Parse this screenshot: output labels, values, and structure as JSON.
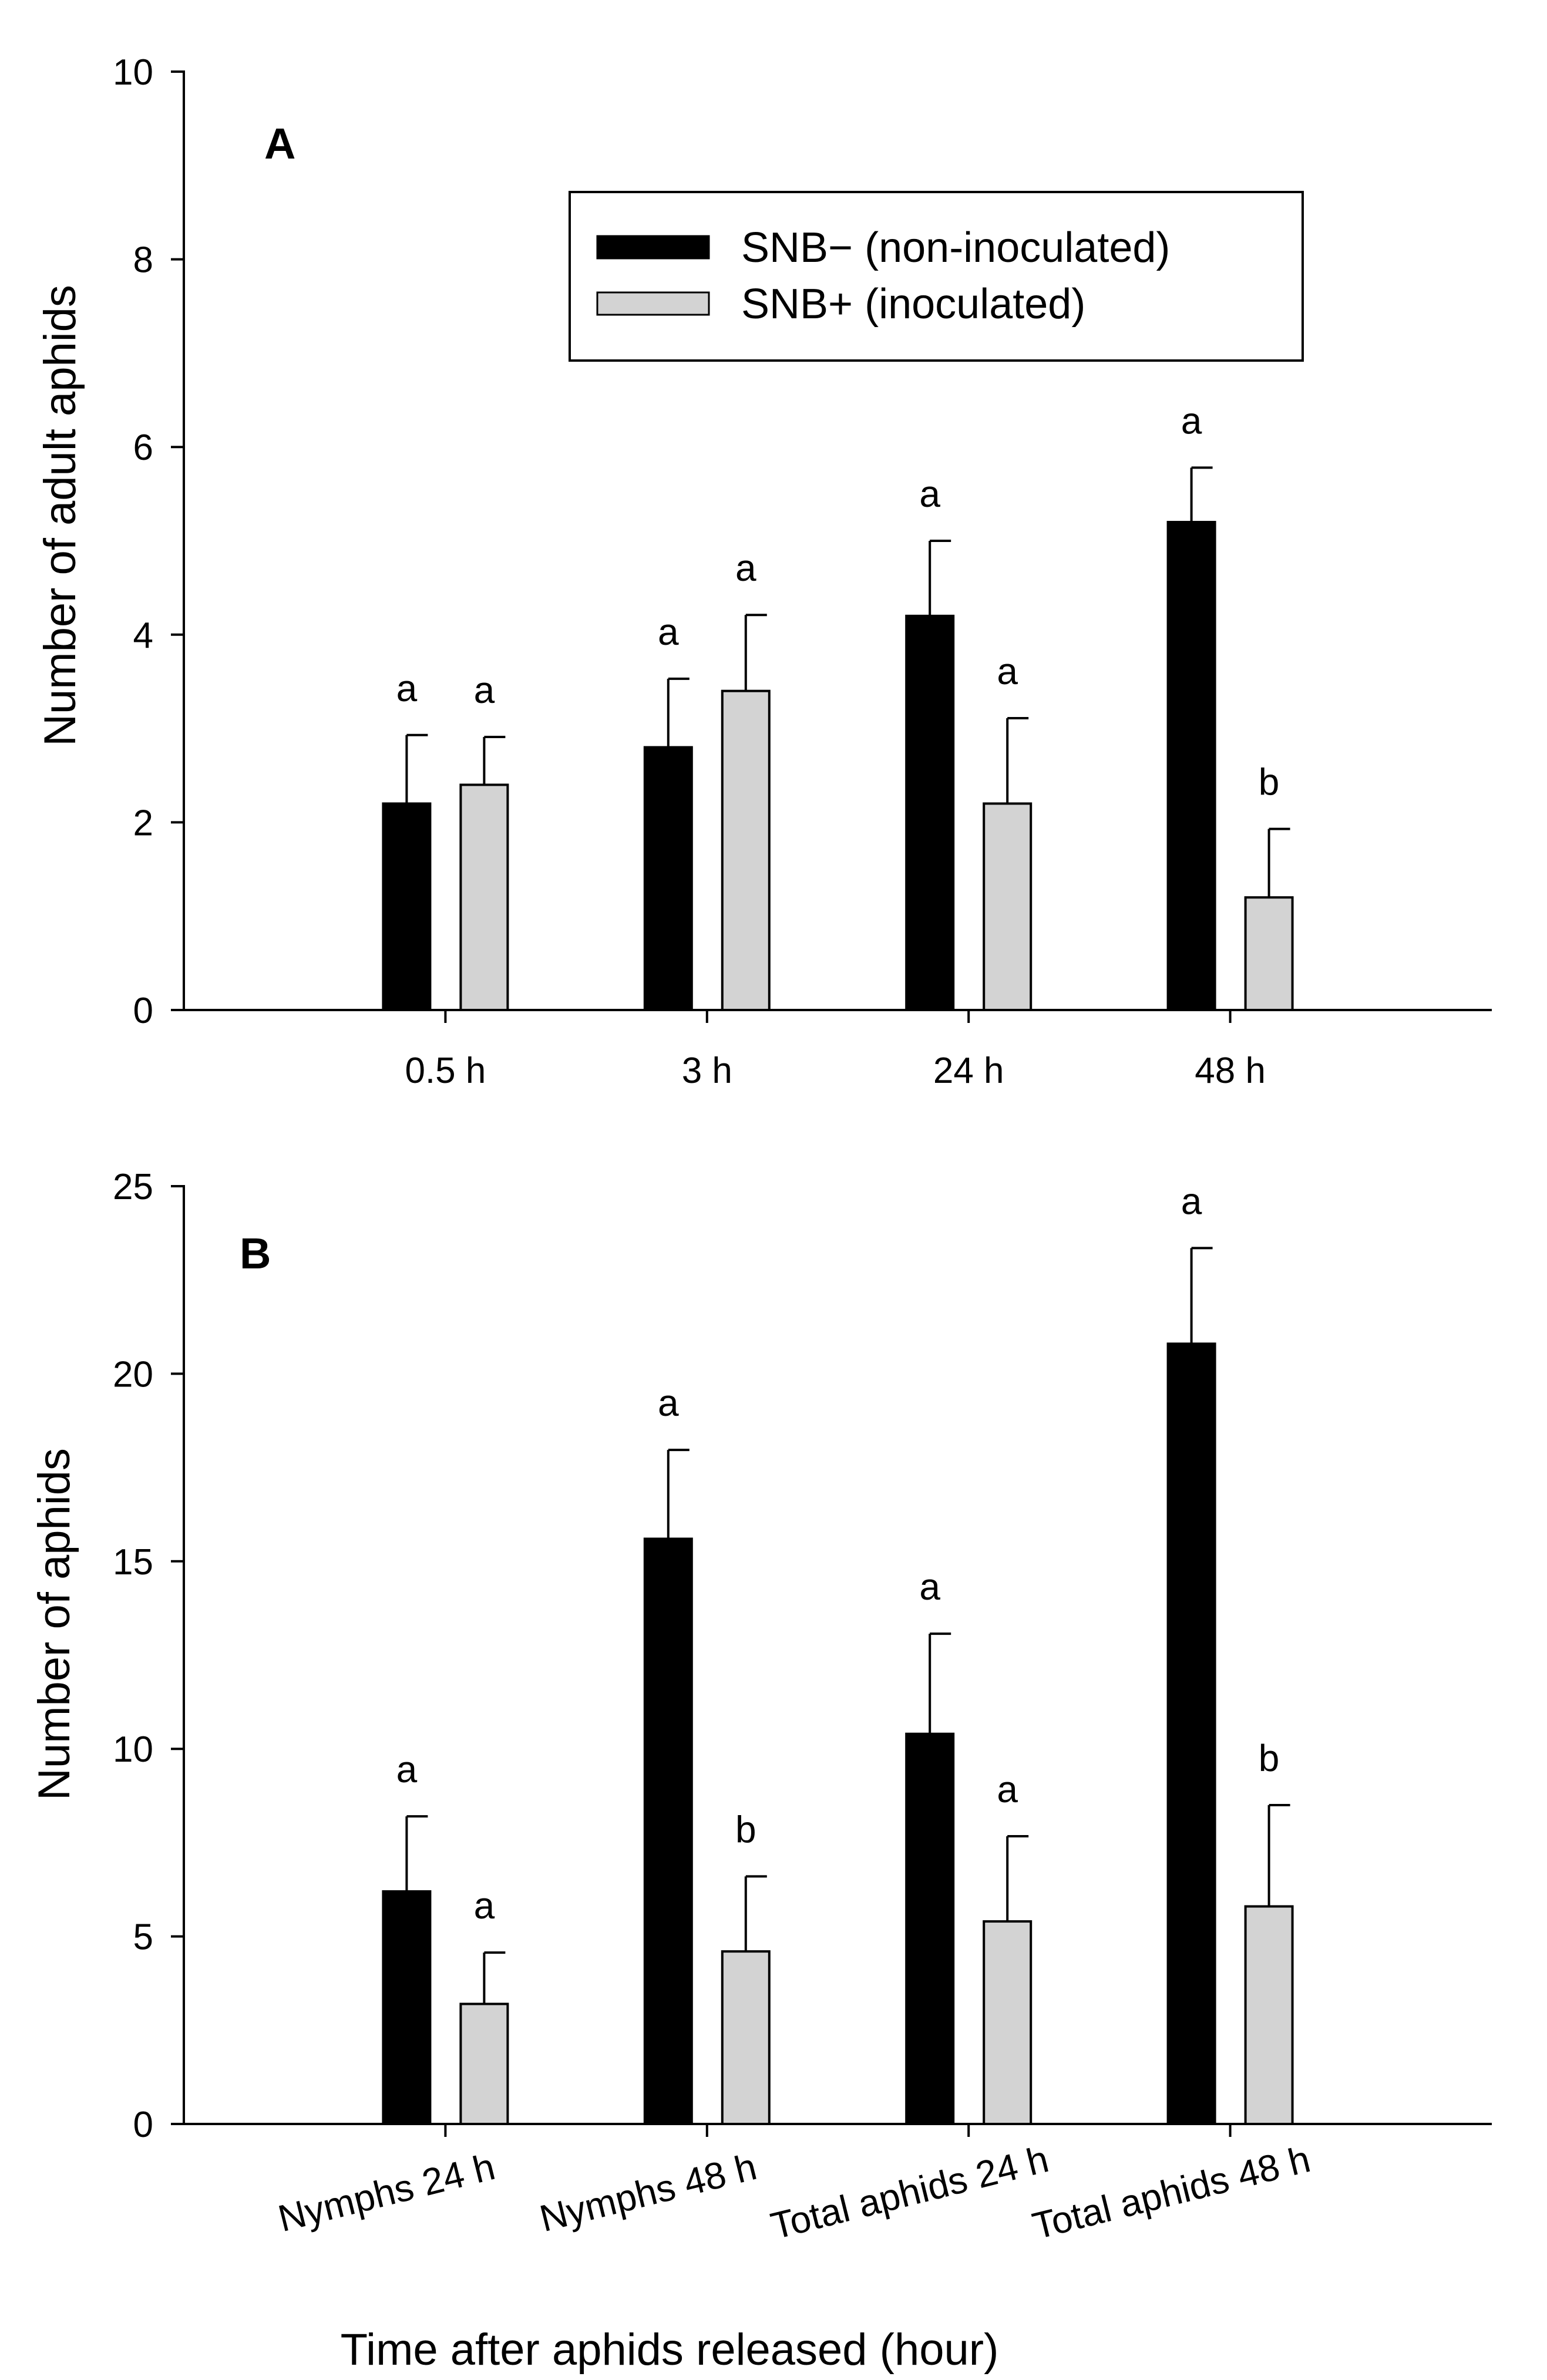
{
  "figure": {
    "xlabel": "Time after aphids released (hour)"
  },
  "legend": {
    "entries": [
      {
        "name": "SNB− (non-inoculated)",
        "color": "#000000"
      },
      {
        "name": "SNB+ (inoculated)",
        "color": "#d3d3d3"
      }
    ]
  },
  "chart_data": [
    {
      "type": "bar",
      "panel": "A",
      "title": "",
      "xlabel": "",
      "ylabel": "Number of adult aphids",
      "ylim": [
        0,
        10
      ],
      "yticks": [
        0,
        2,
        4,
        6,
        8,
        10
      ],
      "categories": [
        "0.5 h",
        "3 h",
        "24 h",
        "48 h"
      ],
      "legend_position": "top-right",
      "series": [
        {
          "name": "SNB− (non-inoculated)",
          "color": "#000000",
          "values": [
            2.2,
            2.8,
            4.2,
            5.2
          ],
          "errors": [
            0.73,
            0.73,
            0.8,
            0.58
          ],
          "letters": [
            "a",
            "a",
            "a",
            "a"
          ]
        },
        {
          "name": "SNB+ (inoculated)",
          "color": "#d3d3d3",
          "values": [
            2.4,
            3.4,
            2.2,
            1.2
          ],
          "errors": [
            0.51,
            0.81,
            0.91,
            0.73
          ],
          "letters": [
            "a",
            "a",
            "a",
            "b"
          ]
        }
      ]
    },
    {
      "type": "bar",
      "panel": "B",
      "title": "",
      "xlabel": "Time after aphids released (hour)",
      "ylabel": "Number of aphids",
      "ylim": [
        0,
        25
      ],
      "yticks": [
        0,
        5,
        10,
        15,
        20,
        25
      ],
      "categories": [
        "Nymphs 24 h",
        "Nymphs 48 h",
        "Total aphids 24 h",
        "Total aphids 48 h"
      ],
      "series": [
        {
          "name": "SNB− (non-inoculated)",
          "color": "#000000",
          "values": [
            6.2,
            15.6,
            10.4,
            20.8
          ],
          "errors": [
            2.0,
            2.37,
            2.67,
            2.55
          ],
          "letters": [
            "a",
            "a",
            "a",
            "a"
          ]
        },
        {
          "name": "SNB+ (inoculated)",
          "color": "#d3d3d3",
          "values": [
            3.2,
            4.6,
            5.4,
            5.8
          ],
          "errors": [
            1.37,
            2.0,
            2.27,
            2.7
          ],
          "letters": [
            "a",
            "b",
            "a",
            "b"
          ]
        }
      ]
    }
  ]
}
